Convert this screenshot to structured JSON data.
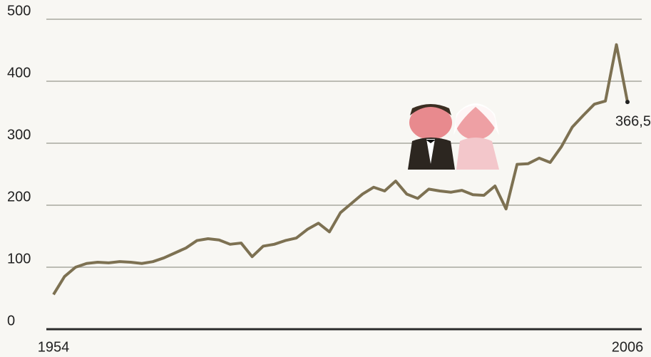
{
  "chart_data": {
    "type": "line",
    "x": [
      1954,
      1955,
      1956,
      1957,
      1958,
      1959,
      1960,
      1961,
      1962,
      1963,
      1964,
      1965,
      1966,
      1967,
      1968,
      1969,
      1970,
      1971,
      1972,
      1973,
      1974,
      1975,
      1976,
      1977,
      1978,
      1979,
      1980,
      1981,
      1982,
      1983,
      1984,
      1985,
      1986,
      1987,
      1988,
      1989,
      1990,
      1991,
      1992,
      1993,
      1994,
      1995,
      1996,
      1997,
      1998,
      1999,
      2000,
      2001,
      2002,
      2003,
      2004,
      2005,
      2006
    ],
    "series": [
      {
        "color": "#7d7152",
        "values": [
          56,
          85,
          100,
          106,
          108,
          107,
          109,
          108,
          106,
          109,
          115,
          123,
          131,
          143,
          146,
          144,
          137,
          139,
          117,
          134,
          137,
          143,
          147,
          161,
          171,
          157,
          188,
          203,
          218,
          229,
          223,
          239,
          218,
          211,
          226,
          223,
          221,
          224,
          217,
          216,
          231,
          194,
          266,
          267,
          276,
          269,
          294,
          326,
          345,
          363,
          368,
          459,
          366.5
        ],
        "value_labels": [
          null,
          null,
          null,
          null,
          null,
          null,
          null,
          null,
          null,
          null,
          null,
          null,
          null,
          null,
          null,
          null,
          null,
          null,
          null,
          null,
          null,
          null,
          null,
          null,
          null,
          null,
          null,
          null,
          null,
          null,
          null,
          null,
          null,
          null,
          null,
          null,
          null,
          null,
          null,
          null,
          null,
          null,
          null,
          null,
          null,
          null,
          null,
          null,
          null,
          null,
          null,
          null,
          "366,5"
        ]
      }
    ],
    "xlim": [
      1954,
      2006
    ],
    "xticks": [
      1954,
      2006
    ],
    "ylim": [
      0,
      500
    ],
    "yticks": [
      0,
      100,
      200,
      300,
      400,
      500
    ],
    "grid": true
  }
}
